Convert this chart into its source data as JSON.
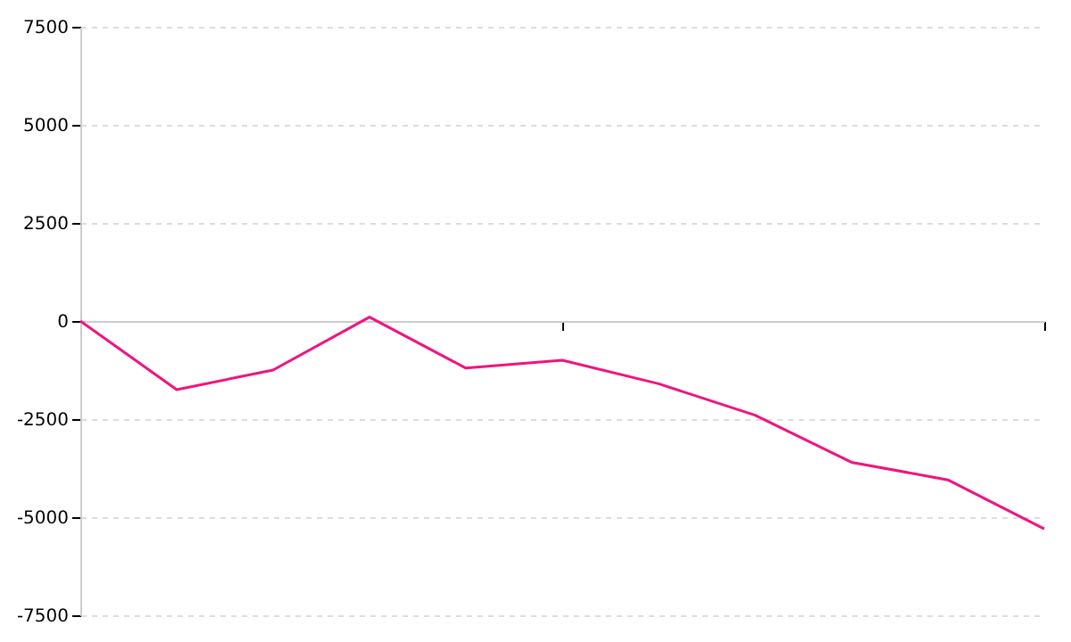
{
  "chart_data": {
    "type": "line",
    "categories": [
      null,
      null,
      null,
      null,
      null,
      null,
      null,
      null,
      null,
      null,
      null
    ],
    "series": [
      {
        "color": "#f0147f",
        "values": [
          0,
          -1750,
          -1250,
          100,
          -1200,
          -1000,
          -1600,
          -2400,
          -3600,
          -4050,
          -5300
        ]
      }
    ],
    "ylim": [
      -7500,
      7500
    ],
    "yticks": [
      -7500,
      -5000,
      -2500,
      0,
      2500,
      5000,
      7500
    ],
    "grid": "y",
    "tick_labels": "y",
    "marker": "none",
    "line_style": "solid"
  }
}
